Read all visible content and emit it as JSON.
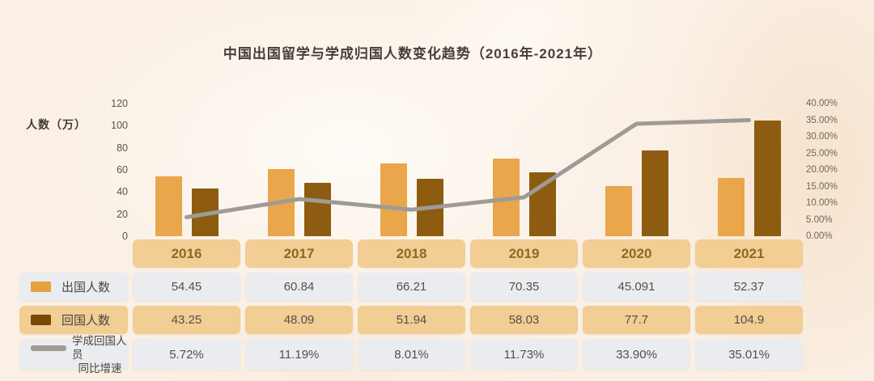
{
  "title": "中国出国留学与学成归国人数变化趋势（2016年-2021年）",
  "colors": {
    "abroad_bar": "#e9a64a",
    "abroad_swatch": "#e5a23f",
    "return_bar": "#8d5c10",
    "return_swatch": "#7a4a05",
    "line": "#9e9b97",
    "cell_gray": "#ebecef",
    "cell_tan": "#f2cd94",
    "year_text": "#8c6a20"
  },
  "chart_data": {
    "type": "bar",
    "title": "中国出国留学与学成归国人数变化趋势（2016年-2021年）",
    "categories": [
      "2016",
      "2017",
      "2018",
      "2019",
      "2020",
      "2021"
    ],
    "left_axis": {
      "label": "人数（万）",
      "ticks": [
        "120",
        "100",
        "80",
        "60",
        "40",
        "20",
        "0"
      ],
      "min": 0,
      "max": 120
    },
    "right_axis": {
      "ticks": [
        "40.00%",
        "35.00%",
        "30.00%",
        "25.00%",
        "20.00%",
        "15.00%",
        "10.00%",
        "5.00%",
        "0.00%"
      ],
      "min": 0,
      "max": 40
    },
    "grid": "off",
    "legend_position": "table-left",
    "series": [
      {
        "name": "出国人数",
        "type": "bar",
        "values": [
          54.45,
          60.84,
          66.21,
          70.35,
          45.091,
          52.37
        ],
        "display": [
          "54.45",
          "60.84",
          "66.21",
          "70.35",
          "45.091",
          "52.37"
        ]
      },
      {
        "name": "回国人数",
        "type": "bar",
        "values": [
          43.25,
          48.09,
          51.94,
          58.03,
          77.7,
          104.9
        ],
        "display": [
          "43.25",
          "48.09",
          "51.94",
          "58.03",
          "77.7",
          "104.9"
        ]
      },
      {
        "name": "学成回国人员同比增速",
        "name_lines": [
          "学成回国人员",
          "同比增速"
        ],
        "type": "line",
        "values": [
          5.72,
          11.19,
          8.01,
          11.73,
          33.9,
          35.01
        ],
        "display": [
          "5.72%",
          "11.19%",
          "8.01%",
          "11.73%",
          "33.90%",
          "35.01%"
        ]
      }
    ]
  }
}
